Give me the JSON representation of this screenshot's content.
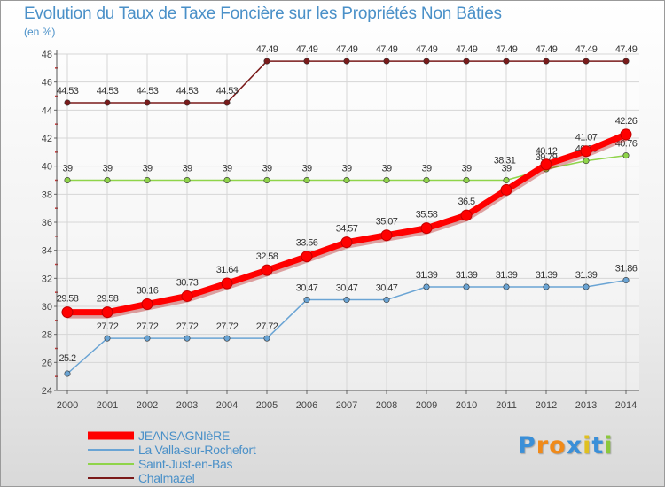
{
  "chart_data": {
    "type": "line",
    "title": "Evolution du Taux de Taxe Foncière sur les Propriétés Non Bâties",
    "ylabel": "(en %)",
    "xlabel": "",
    "x": [
      "2000",
      "2001",
      "2002",
      "2003",
      "2004",
      "2005",
      "2006",
      "2007",
      "2008",
      "2009",
      "2010",
      "2011",
      "2012",
      "2013",
      "2014"
    ],
    "ylim": [
      24,
      48
    ],
    "yticks": [
      "24",
      "26",
      "28",
      "30",
      "32",
      "34",
      "36",
      "38",
      "40",
      "42",
      "44",
      "46",
      "48"
    ],
    "grid": true,
    "legend_position": "bottom-left",
    "series": [
      {
        "name": "JEANSAGNIèRE",
        "color": "#ff0000",
        "values": [
          29.58,
          29.58,
          30.16,
          30.73,
          31.64,
          32.58,
          33.56,
          34.57,
          35.07,
          35.58,
          36.5,
          38.31,
          40.12,
          41.07,
          42.26
        ],
        "labels": [
          "29.58",
          "29.58",
          "30.16",
          "30.73",
          "31.64",
          "32.58",
          "33.56",
          "34.57",
          "35.07",
          "35.58",
          "36.5",
          "",
          "40.12",
          "41.07",
          "42.26"
        ]
      },
      {
        "name": "La Valla-sur-Rochefort",
        "color": "#6aa4d4",
        "values": [
          25.2,
          27.72,
          27.72,
          27.72,
          27.72,
          27.72,
          30.47,
          30.47,
          30.47,
          31.39,
          31.39,
          31.39,
          31.39,
          31.39,
          31.86
        ],
        "labels": [
          "25.2",
          "27.72",
          "27.72",
          "27.72",
          "27.72",
          "27.72",
          "30.47",
          "30.47",
          "30.47",
          "31.39",
          "31.39",
          "31.39",
          "31.39",
          "31.39",
          "31.86"
        ]
      },
      {
        "name": "Saint-Just-en-Bas",
        "color": "#8fd44a",
        "values": [
          39,
          39,
          39,
          39,
          39,
          39,
          39,
          39,
          39,
          39,
          39,
          39,
          39.79,
          40.38,
          40.76
        ],
        "labels": [
          "39",
          "39",
          "39",
          "39",
          "39",
          "39",
          "39",
          "39",
          "39",
          "39",
          "39",
          "39",
          "39.79",
          "40.38",
          "40.76"
        ]
      },
      {
        "name": "Chalmazel",
        "color": "#7a1a1a",
        "values": [
          44.53,
          44.53,
          44.53,
          44.53,
          44.53,
          47.49,
          47.49,
          47.49,
          47.49,
          47.49,
          47.49,
          47.49,
          47.49,
          47.49,
          47.49
        ],
        "labels": [
          "44.53",
          "44.53",
          "44.53",
          "44.53",
          "44.53",
          "47.49",
          "47.49",
          "47.49",
          "47.49",
          "47.49",
          "47.49",
          "47.49",
          "47.49",
          "47.49",
          "47.49"
        ]
      }
    ]
  },
  "extra_labels": {
    "jeansagniere_2011": "38.31"
  },
  "logo": {
    "text": "Proxiti",
    "letters": [
      "P",
      "r",
      "o",
      "x",
      "i",
      "t",
      "i"
    ],
    "colors": [
      "#3a8fd8",
      "#f08a1a",
      "#f08a1a",
      "#3a8fd8",
      "#e0c020",
      "#3a8fd8",
      "#8cc83c"
    ]
  }
}
